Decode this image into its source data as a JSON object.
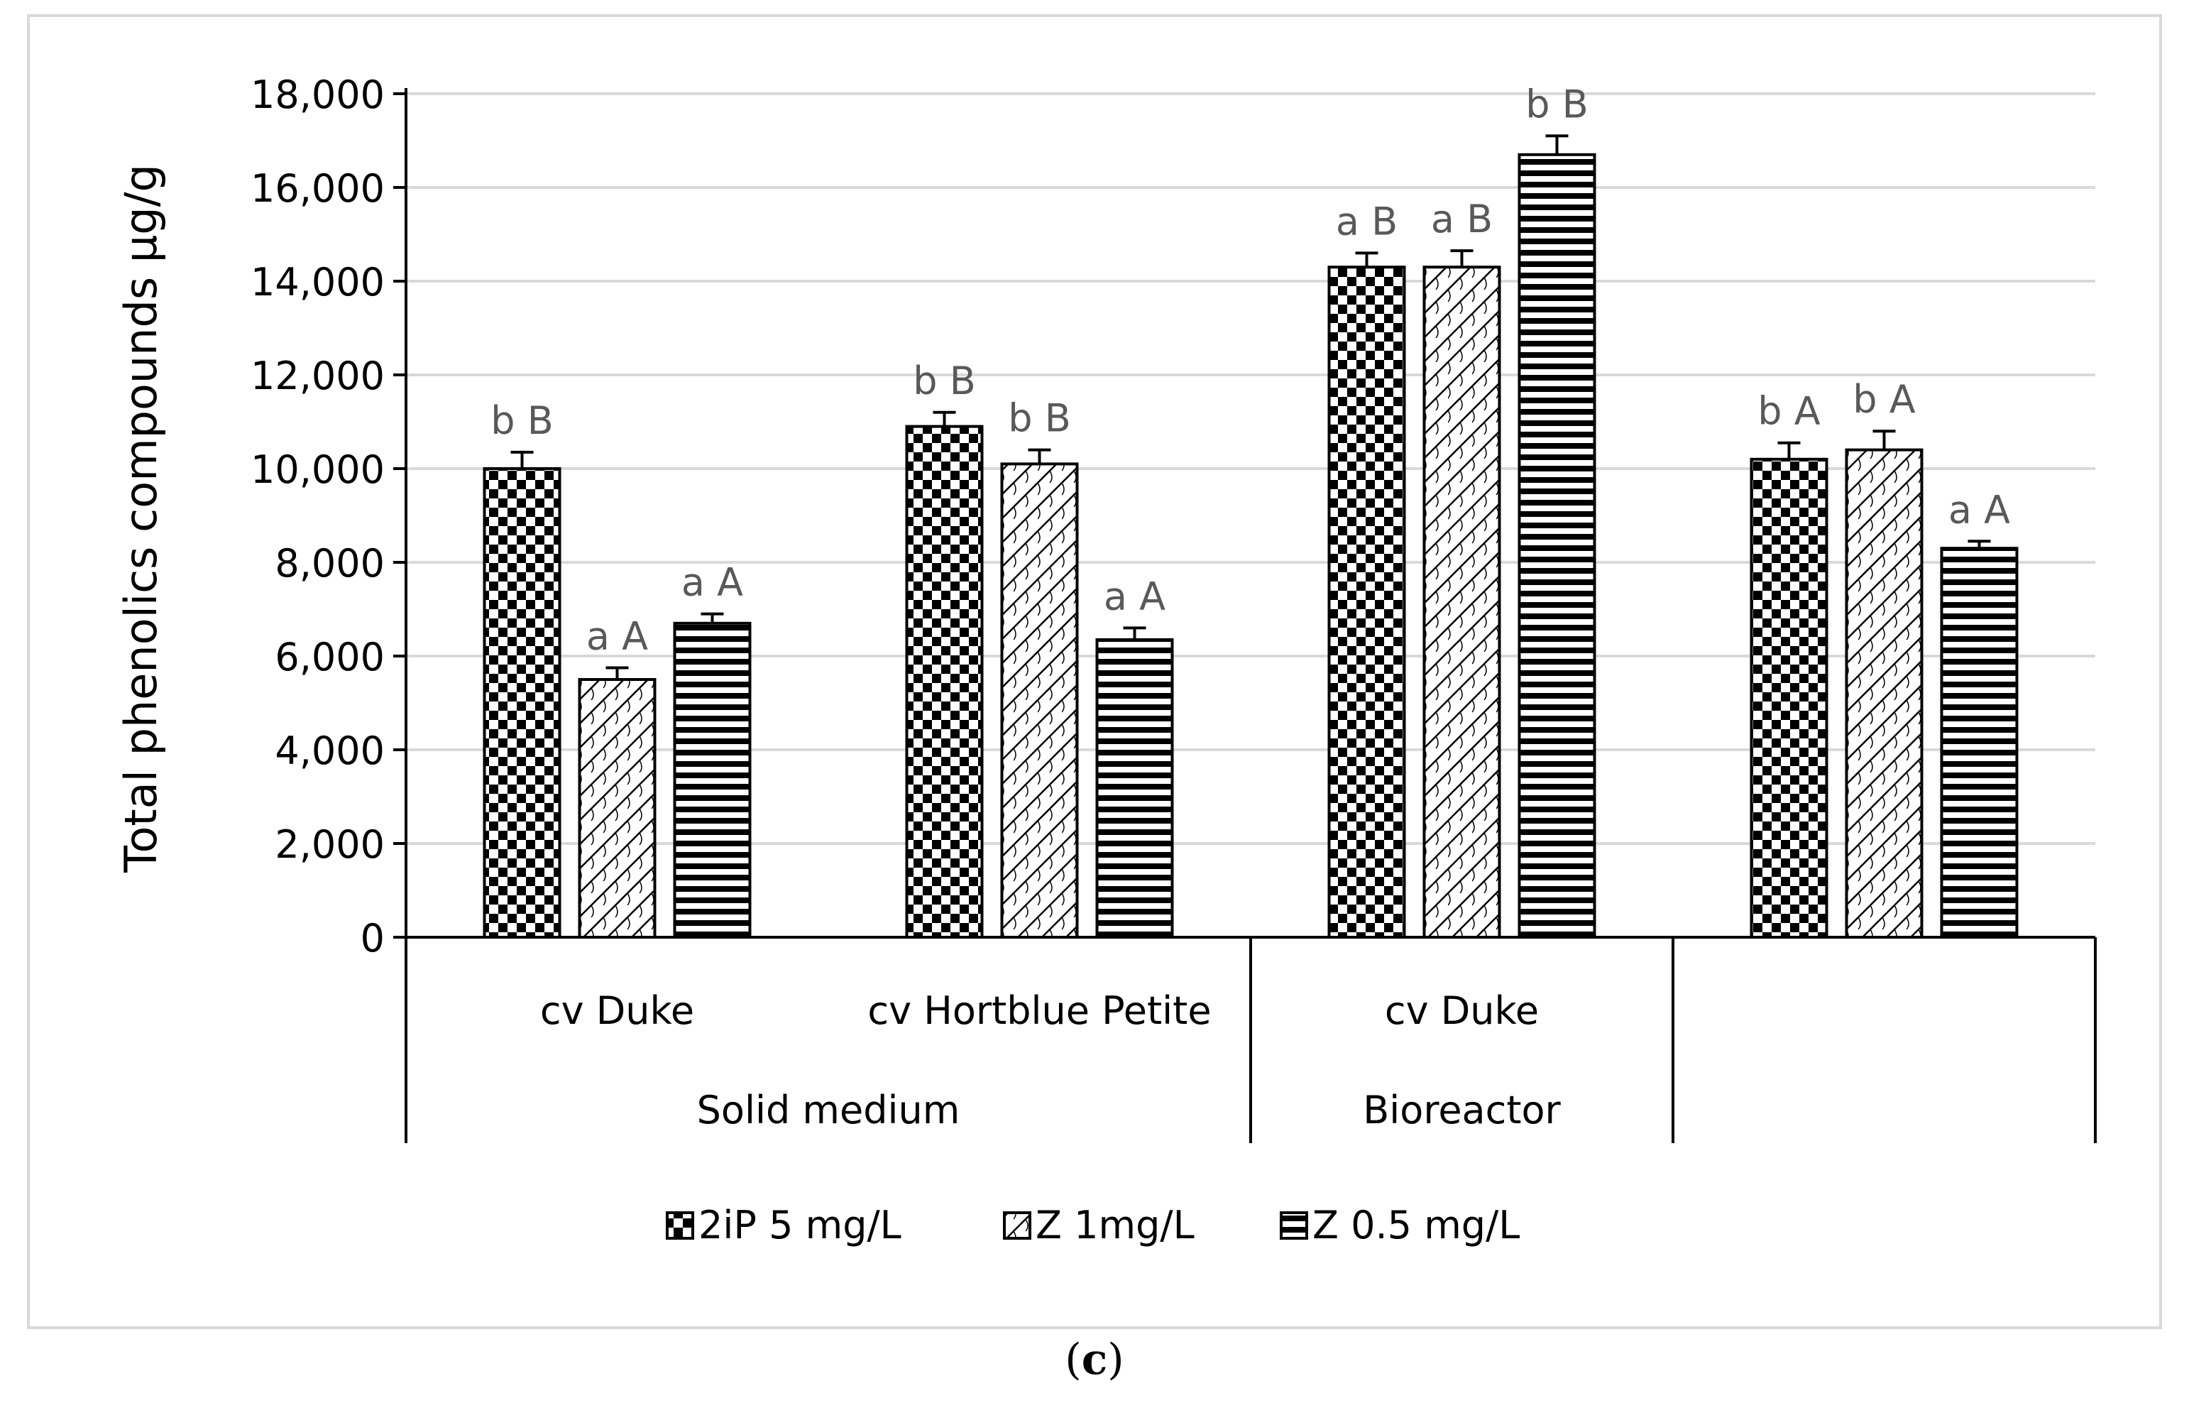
{
  "chart_data": {
    "type": "bar",
    "ylabel": "Total phenolics compounds µg/g",
    "xlabel": "",
    "ylim": [
      0,
      18000
    ],
    "ytick_step": 2000,
    "yticks": [
      "0",
      "2,000",
      "4,000",
      "6,000",
      "8,000",
      "10,000",
      "12,000",
      "14,000",
      "16,000",
      "18,000"
    ],
    "grid": true,
    "legend_position": "bottom-center",
    "categories": [
      "cv Duke",
      "cv Hortblue Petite",
      "cv Duke",
      ""
    ],
    "groups": [
      {
        "label": "Solid medium",
        "span": 2
      },
      {
        "label": "Bioreactor",
        "span": 1
      },
      {
        "label": "",
        "span": 1
      }
    ],
    "series": [
      {
        "name": "2iP 5 mg/L",
        "pattern": "checker",
        "values": [
          10000,
          10900,
          14300,
          10200
        ],
        "errors": [
          350,
          300,
          300,
          350
        ],
        "labels": [
          "b B",
          "b B",
          "a B",
          "b A"
        ]
      },
      {
        "name": "Z 1mg/L",
        "pattern": "diagonal",
        "values": [
          5500,
          10100,
          14300,
          10400
        ],
        "errors": [
          250,
          300,
          350,
          400
        ],
        "labels": [
          "a A",
          "b B",
          "a B",
          "b A"
        ]
      },
      {
        "name": "Z 0.5 mg/L",
        "pattern": "horizontal",
        "values": [
          6700,
          6350,
          16700,
          8300
        ],
        "errors": [
          200,
          250,
          400,
          150
        ],
        "labels": [
          "a A",
          "a A",
          "b B",
          "a A"
        ]
      }
    ]
  },
  "panel_label": "(c)",
  "panel_letter": "c",
  "colors": {
    "bar_fill": "#000000",
    "grid": "#d9d9d9",
    "axis": "#000000",
    "label_text": "#595959",
    "frame": "#d9d9d9"
  }
}
